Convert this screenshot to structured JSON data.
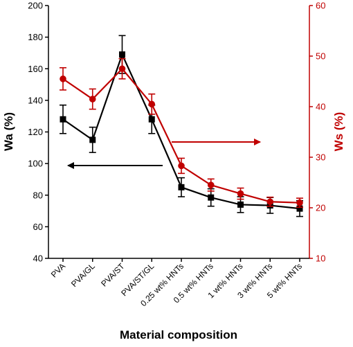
{
  "chart_data": {
    "type": "line",
    "xlabel": "Material composition",
    "categories": [
      "PVA",
      "PVA/GL",
      "PVA/ST",
      "PVA/ST/GL",
      "0.25 wt% HNTs",
      "0.5 wt% HNTs",
      "1 wt% HNTs",
      "3 wt% HNTs",
      "5 wt% HNTs"
    ],
    "y_left": {
      "label": "Wa (%)",
      "ylim": [
        40,
        200
      ],
      "ticks": [
        40,
        60,
        80,
        100,
        120,
        140,
        160,
        180,
        200
      ],
      "color": "#000000"
    },
    "y_right": {
      "label": "Ws (%)",
      "ylim": [
        10,
        60
      ],
      "ticks": [
        10,
        20,
        30,
        40,
        50,
        60
      ],
      "color": "#c00000"
    },
    "series": [
      {
        "axis": "left",
        "marker": "square",
        "color": "#000000",
        "values": [
          128,
          115,
          169,
          128,
          85,
          78.5,
          74,
          73.5,
          71.5
        ],
        "errors": [
          9,
          8,
          12,
          9,
          6,
          5.5,
          5,
          5,
          5
        ]
      },
      {
        "axis": "right",
        "marker": "circle",
        "color": "#c00000",
        "values": [
          45.5,
          41.5,
          47.5,
          40.5,
          28.3,
          24.5,
          22.8,
          21.2,
          21
        ],
        "errors": [
          2.2,
          2,
          2,
          2,
          1.5,
          1.2,
          1.1,
          0.9,
          0.9
        ]
      }
    ],
    "annotations": [
      {
        "type": "arrow",
        "direction": "left",
        "points_to": "Wa (%)",
        "color": "#000000"
      },
      {
        "type": "arrow",
        "direction": "right",
        "points_to": "Ws (%)",
        "color": "#c00000"
      }
    ],
    "grid": false,
    "legend": "none"
  }
}
